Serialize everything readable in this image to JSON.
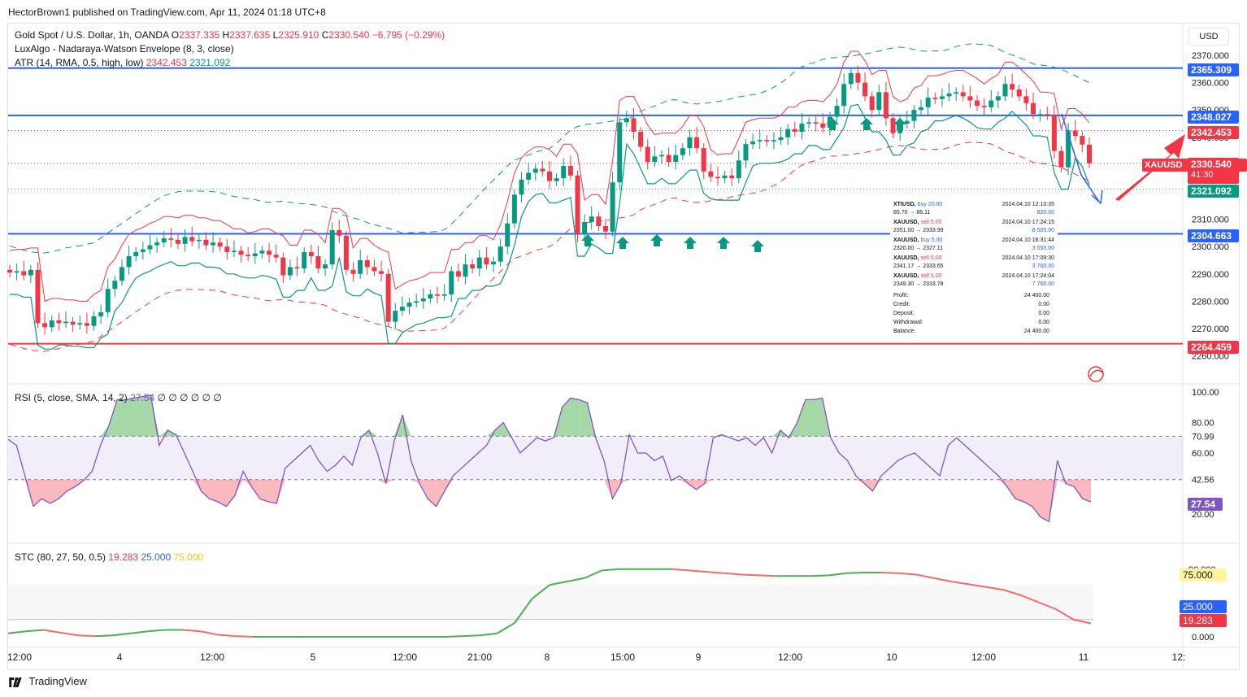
{
  "header": {
    "publish_line": "HectorBrown1 published on TradingView.com, Apr 11, 2024 01:18 UTC+8"
  },
  "legend": {
    "main_title": "Gold Spot / U.S. Dollar, 1h, OANDA",
    "o_label": "O",
    "o": "2337.335",
    "h_label": "H",
    "h": "2337.635",
    "l_label": "L",
    "l": "2325.910",
    "c_label": "C",
    "c": "2330.540",
    "change": "−6.795 (−0.29%)",
    "envelope": "LuxAlgo - Nadaraya-Watson Envelope (8, 3, close)",
    "atr_label": "ATR (14, RMA, 0.5, high, low)",
    "atr_a": "2342.453",
    "atr_b": "2321.092",
    "rsi_label": "RSI (5, close, SMA, 14, 2)",
    "rsi_val": "27.54",
    "rsi_empty": "∅ ∅ ∅ ∅ ∅ ∅",
    "stc_label": "STC (80, 27, 50, 0.5)",
    "stc_a": "19.283",
    "stc_b": "25.000",
    "stc_c": "75.000"
  },
  "currency_button": "USD",
  "price_axis": [
    "2370.000",
    "2360.000",
    "2350.000",
    "2340.000",
    "2310.000",
    "2300.000",
    "2290.000",
    "2280.000",
    "2270.000",
    "2260.000"
  ],
  "price_labels": {
    "l1": "2365.309",
    "l2": "2348.027",
    "l3": "2342.453",
    "l4": "2330.540",
    "l4_sub": "41:30",
    "symbol": "XAUUSD",
    "l5": "2321.092",
    "l6": "2304.663",
    "l7": "2264.459"
  },
  "rsi_axis": [
    "100.00",
    "80.00",
    "70.99",
    "60.00",
    "42.56",
    "20.00"
  ],
  "rsi_badge": "27.54",
  "stc_axis": [
    "0.000"
  ],
  "stc_hidden_label": "90.000",
  "stc_badges": {
    "b75": "75.000",
    "b25": "25.000",
    "b19": "19.283"
  },
  "time_axis": [
    "12:00",
    "4",
    "12:00",
    "5",
    "12:00",
    "21:00",
    "8",
    "15:00",
    "9",
    "12:00",
    "10",
    "12:00",
    "11",
    "12:"
  ],
  "trades": [
    {
      "sym": "XTIUSD",
      "side": "buy 20.00",
      "date": "2024.04.10 12:10:35",
      "range": "85.70 → 86.11",
      "profit": "820.00",
      "dir": "buy"
    },
    {
      "sym": "XAUUSD",
      "side": "sell 5.00",
      "date": "2024.04.10 17:24:15",
      "range": "2351.00 → 2333.99",
      "profit": "8 505.00",
      "dir": "sell"
    },
    {
      "sym": "XAUUSD",
      "side": "buy 5.00",
      "date": "2024.04.10 16:31:44",
      "range": "2320.00 → 2327.11",
      "profit": "3 555.00",
      "dir": "buy"
    },
    {
      "sym": "XAUUSD",
      "side": "sell 5.00",
      "date": "2024.04.10 17:09:30",
      "range": "2341.17 → 2333.65",
      "profit": "3 760.00",
      "dir": "sell"
    },
    {
      "sym": "XAUUSD",
      "side": "sell 5.00",
      "date": "2024.04.10 17:24:04",
      "range": "2349.30 → 2333.78",
      "profit": "7 760.00",
      "dir": "sell"
    }
  ],
  "account": [
    {
      "k": "Profit:",
      "v": "24 400.00"
    },
    {
      "k": "Credit:",
      "v": "0.00"
    },
    {
      "k": "Deposit:",
      "v": "0.00"
    },
    {
      "k": "Withdrawal:",
      "v": "0.00"
    },
    {
      "k": "Balance:",
      "v": "24 400.00"
    }
  ],
  "footer": {
    "brand": "TradingView"
  },
  "colors": {
    "up": "#089981",
    "down": "#f23645",
    "blue_line": "#2962ff",
    "rsi": "#7e57c2",
    "stc_up": "#4caf50",
    "stc_down": "#f36b6b"
  },
  "chart_data": {
    "type": "candlestick",
    "symbol": "XAUUSD",
    "interval": "1h",
    "ylim": [
      2255,
      2375
    ],
    "horizontal_levels": [
      2365.309,
      2348.027,
      2304.663,
      2264.459
    ],
    "atr_levels": [
      2342.453,
      2321.092
    ],
    "current_price": 2330.54,
    "closes": [
      2290.5,
      2291.0,
      2289.5,
      2291.5,
      2272.0,
      2270.5,
      2273.0,
      2272.0,
      2272.5,
      2271.5,
      2272.0,
      2271.0,
      2274.5,
      2276.0,
      2284.5,
      2287.5,
      2292.5,
      2296.5,
      2298.0,
      2299.0,
      2300.5,
      2301.5,
      2303.0,
      2302.5,
      2301.0,
      2303.5,
      2302.0,
      2302.5,
      2300.5,
      2301.5,
      2300.0,
      2298.0,
      2298.5,
      2297.0,
      2296.5,
      2297.5,
      2298.5,
      2297.0,
      2296.0,
      2289.5,
      2292.5,
      2292.0,
      2298.0,
      2296.5,
      2292.0,
      2293.5,
      2306.0,
      2304.0,
      2291.5,
      2290.0,
      2295.0,
      2292.5,
      2291.0,
      2290.0,
      2272.5,
      2276.5,
      2278.0,
      2279.5,
      2280.0,
      2281.0,
      2282.5,
      2282.0,
      2282.5,
      2291.0,
      2289.0,
      2293.5,
      2292.0,
      2296.0,
      2293.5,
      2294.5,
      2300.0,
      2308.5,
      2319.0,
      2324.5,
      2327.0,
      2328.5,
      2327.5,
      2324.0,
      2325.0,
      2329.5,
      2326.0,
      2304.5,
      2309.0,
      2311.0,
      2307.5,
      2305.5,
      2323.5,
      2345.5,
      2347.0,
      2342.0,
      2336.5,
      2331.0,
      2333.0,
      2333.5,
      2331.0,
      2333.5,
      2336.0,
      2340.0,
      2336.0,
      2327.5,
      2325.5,
      2325.0,
      2326.0,
      2325.0,
      2331.5,
      2337.5,
      2338.5,
      2339.0,
      2338.5,
      2339.0,
      2340.0,
      2343.0,
      2342.0,
      2345.0,
      2345.5,
      2345.0,
      2343.5,
      2347.5,
      2351.5,
      2359.5,
      2363.5,
      2360.0,
      2355.0,
      2350.0,
      2356.5,
      2347.0,
      2341.5,
      2345.0,
      2346.0,
      2350.0,
      2351.0,
      2354.5,
      2354.0,
      2355.0,
      2356.0,
      2356.5,
      2355.0,
      2353.5,
      2351.5,
      2351.0,
      2353.5,
      2355.0,
      2359.5,
      2357.5,
      2355.0,
      2352.5,
      2348.5,
      2348.5,
      2348.0,
      2335.0,
      2329.0,
      2342.5,
      2340.5,
      2337.3,
      2330.5
    ],
    "rsi": [
      69,
      65,
      45,
      25,
      30,
      27,
      30,
      35,
      38,
      42,
      48,
      65,
      78,
      95,
      95,
      96,
      97,
      98,
      65,
      75,
      72,
      60,
      48,
      35,
      30,
      28,
      25,
      32,
      48,
      38,
      30,
      28,
      27,
      50,
      55,
      60,
      65,
      55,
      48,
      52,
      58,
      52,
      70,
      75,
      60,
      40,
      68,
      85,
      55,
      40,
      30,
      25,
      35,
      45,
      50,
      55,
      60,
      65,
      75,
      80,
      70,
      60,
      65,
      70,
      68,
      70,
      90,
      96,
      95,
      93,
      70,
      55,
      30,
      40,
      72,
      60,
      60,
      55,
      58,
      42,
      45,
      40,
      36,
      40,
      70,
      72,
      70,
      68,
      70,
      65,
      70,
      60,
      75,
      70,
      80,
      95,
      95,
      96,
      70,
      60,
      55,
      45,
      40,
      35,
      45,
      50,
      55,
      58,
      60,
      55,
      50,
      45,
      65,
      70,
      65,
      60,
      55,
      50,
      45,
      38,
      30,
      28,
      25,
      18,
      15,
      55,
      40,
      38,
      30,
      28
    ],
    "rsi_bands": [
      70.99,
      42.56
    ],
    "stc": [
      5,
      8,
      10,
      6,
      2,
      1,
      2,
      5,
      8,
      10,
      10,
      8,
      3,
      1,
      0,
      0,
      0,
      0,
      0,
      0,
      0,
      0,
      0,
      0,
      0,
      0,
      1,
      2,
      5,
      20,
      55,
      75,
      80,
      85,
      96,
      98,
      98,
      98,
      98,
      96,
      94,
      92,
      90,
      89,
      88,
      88,
      88,
      89,
      92,
      93,
      93,
      92,
      90,
      85,
      80,
      76,
      72,
      68,
      60,
      50,
      40,
      25,
      19.283
    ],
    "stc_levels": [
      75,
      25
    ]
  }
}
